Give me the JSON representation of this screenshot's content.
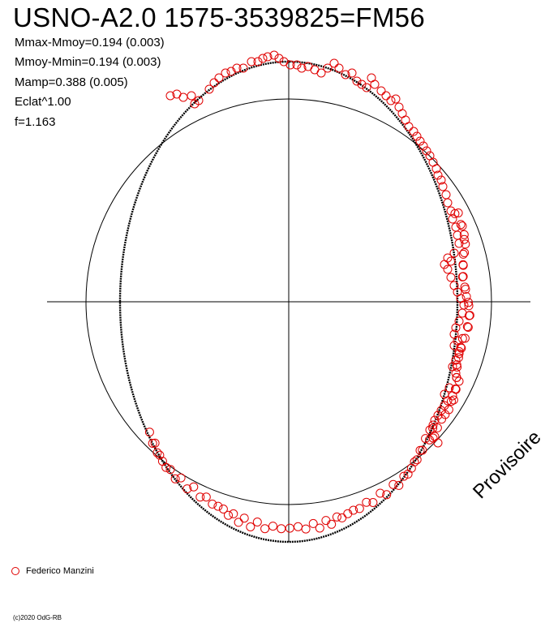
{
  "title": "USNO-A2.0 1575-3539825=FM56",
  "stats": [
    "Mmax-Mmoy=0.194 (0.003)",
    "Mmoy-Mmin=0.194 (0.003)",
    "Mamp=0.388 (0.005)",
    "Eclat^1.00",
    "f=1.163"
  ],
  "watermark": "Provisoire",
  "legend": {
    "observer": "Federico Manzini",
    "marker_color": "#e00000"
  },
  "copyright": "(c)2020 OdG-RB",
  "chart_data": {
    "type": "scatter",
    "representation": "polar phase diagram",
    "series": [
      {
        "name": "Federico Manzini",
        "color": "#e00000",
        "marker": "open-circle",
        "points": [
          {
            "phase": 0.17,
            "r": 1.16
          },
          {
            "phase": 0.175,
            "r": 1.17
          },
          {
            "phase": 0.18,
            "r": 1.17
          },
          {
            "phase": 0.185,
            "r": 1.16
          },
          {
            "phase": 0.19,
            "r": 1.17
          },
          {
            "phase": 0.195,
            "r": 1.16
          },
          {
            "phase": 0.2,
            "r": 1.18
          },
          {
            "phase": 0.205,
            "r": 1.17
          },
          {
            "phase": 0.21,
            "r": 1.16
          },
          {
            "phase": 0.215,
            "r": 1.17
          },
          {
            "phase": 0.22,
            "r": 1.17
          },
          {
            "phase": 0.225,
            "r": 1.16
          },
          {
            "phase": 0.23,
            "r": 1.16
          },
          {
            "phase": 0.235,
            "r": 1.17
          },
          {
            "phase": 0.24,
            "r": 1.16
          },
          {
            "phase": 0.245,
            "r": 1.15
          },
          {
            "phase": 0.25,
            "r": 1.16
          },
          {
            "phase": 0.255,
            "r": 1.15
          },
          {
            "phase": 0.26,
            "r": 1.16
          },
          {
            "phase": 0.265,
            "r": 1.15
          },
          {
            "phase": 0.27,
            "r": 1.15
          },
          {
            "phase": 0.275,
            "r": 1.16
          },
          {
            "phase": 0.28,
            "r": 1.15
          },
          {
            "phase": 0.285,
            "r": 1.14
          },
          {
            "phase": 0.29,
            "r": 1.15
          },
          {
            "phase": 0.295,
            "r": 1.14
          },
          {
            "phase": 0.3,
            "r": 1.15
          },
          {
            "phase": 0.305,
            "r": 1.13
          },
          {
            "phase": 0.31,
            "r": 1.14
          },
          {
            "phase": 0.315,
            "r": 1.13
          },
          {
            "phase": 0.32,
            "r": 1.13
          },
          {
            "phase": 0.325,
            "r": 1.12
          },
          {
            "phase": 0.33,
            "r": 1.12
          },
          {
            "phase": 0.335,
            "r": 1.11
          },
          {
            "phase": 0.34,
            "r": 1.1
          },
          {
            "phase": 0.345,
            "r": 1.1
          },
          {
            "phase": 0.35,
            "r": 1.09
          },
          {
            "phase": 0.355,
            "r": 1.09
          },
          {
            "phase": 0.36,
            "r": 1.08
          },
          {
            "phase": 0.365,
            "r": 1.06
          },
          {
            "phase": 0.37,
            "r": 1.06
          },
          {
            "phase": 0.375,
            "r": 1.04
          },
          {
            "phase": 0.38,
            "r": 1.03
          },
          {
            "phase": 0.385,
            "r": 1.03
          },
          {
            "phase": 0.39,
            "r": 1.01
          },
          {
            "phase": 0.395,
            "r": 1.0
          },
          {
            "phase": 0.4,
            "r": 0.99
          },
          {
            "phase": 0.405,
            "r": 0.98
          },
          {
            "phase": 0.41,
            "r": 0.97
          },
          {
            "phase": 0.415,
            "r": 0.96
          },
          {
            "phase": 0.42,
            "r": 0.95
          },
          {
            "phase": 0.425,
            "r": 0.93
          },
          {
            "phase": 0.43,
            "r": 0.93
          },
          {
            "phase": 0.435,
            "r": 0.91
          },
          {
            "phase": 0.44,
            "r": 0.91
          },
          {
            "phase": 0.445,
            "r": 0.89
          },
          {
            "phase": 0.45,
            "r": 0.88
          },
          {
            "phase": 0.455,
            "r": 0.88
          },
          {
            "phase": 0.46,
            "r": 0.86
          },
          {
            "phase": 0.465,
            "r": 0.86
          },
          {
            "phase": 0.47,
            "r": 0.85
          },
          {
            "phase": 0.475,
            "r": 0.85
          },
          {
            "phase": 0.48,
            "r": 0.84
          },
          {
            "phase": 0.485,
            "r": 0.84
          },
          {
            "phase": 0.49,
            "r": 0.83
          },
          {
            "phase": 0.495,
            "r": 0.84
          },
          {
            "phase": 0.5,
            "r": 0.83
          },
          {
            "phase": 0.505,
            "r": 0.84
          },
          {
            "phase": 0.51,
            "r": 0.84
          },
          {
            "phase": 0.515,
            "r": 0.84
          },
          {
            "phase": 0.52,
            "r": 0.84
          },
          {
            "phase": 0.525,
            "r": 0.85
          },
          {
            "phase": 0.53,
            "r": 0.85
          },
          {
            "phase": 0.535,
            "r": 0.86
          },
          {
            "phase": 0.54,
            "r": 0.86
          },
          {
            "phase": 0.545,
            "r": 0.87
          },
          {
            "phase": 0.55,
            "r": 0.87
          },
          {
            "phase": 0.555,
            "r": 0.88
          },
          {
            "phase": 0.56,
            "r": 0.89
          },
          {
            "phase": 0.565,
            "r": 0.9
          },
          {
            "phase": 0.57,
            "r": 0.9
          },
          {
            "phase": 0.575,
            "r": 0.91
          },
          {
            "phase": 0.58,
            "r": 0.92
          },
          {
            "phase": 0.585,
            "r": 0.93
          },
          {
            "phase": 0.59,
            "r": 0.94
          },
          {
            "phase": 0.595,
            "r": 0.95
          },
          {
            "phase": 0.6,
            "r": 0.96
          },
          {
            "phase": 0.605,
            "r": 0.97
          },
          {
            "phase": 0.61,
            "r": 0.98
          },
          {
            "phase": 0.615,
            "r": 0.99
          },
          {
            "phase": 0.62,
            "r": 1.0
          },
          {
            "phase": 0.625,
            "r": 1.01
          },
          {
            "phase": 0.63,
            "r": 1.03
          }
        ]
      }
    ],
    "model": {
      "type": "ellipse",
      "aspect_f": 1.163
    },
    "reference_circle": true,
    "axes": {
      "crosshair": true
    }
  }
}
